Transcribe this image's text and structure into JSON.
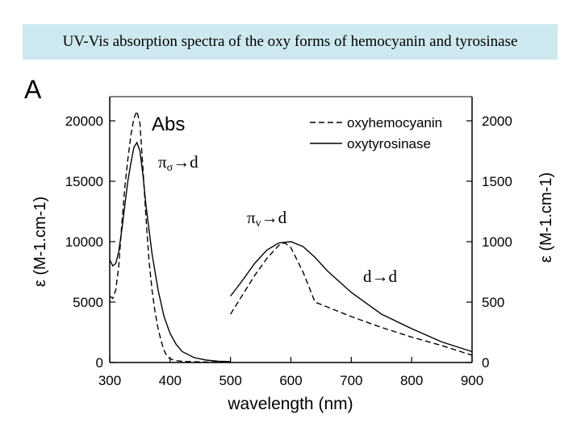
{
  "slide": {
    "title": "UV-Vis absorption spectra of the oxy forms of hemocyanin and tyrosinase"
  },
  "chart_data": {
    "type": "line",
    "panel_label": "A",
    "inner_title": "Abs",
    "xlabel": "wavelength (nm)",
    "ylabel_left": "ε (M-1.cm-1)",
    "ylabel_right": "ε (M-1.cm-1)",
    "xlim": [
      300,
      900
    ],
    "ylim_left": [
      0,
      22000
    ],
    "ylim_right": [
      0,
      2200
    ],
    "right_axis_scale_note": "UV region (300-500 nm) uses left axis; visible region (500-900 nm) uses right axis",
    "x_ticks": [
      300,
      400,
      500,
      600,
      700,
      800,
      900
    ],
    "y_ticks_left": [
      0,
      5000,
      10000,
      15000,
      20000
    ],
    "y_ticks_right": [
      0,
      500,
      1000,
      1500,
      2000
    ],
    "legend_position": "top-right",
    "series": [
      {
        "name": "oxyhemocyanin",
        "style": "dashed",
        "segment_uv": {
          "axis": "left",
          "x": [
            300,
            305,
            310,
            315,
            320,
            325,
            330,
            335,
            340,
            345,
            350,
            355,
            360,
            365,
            370,
            375,
            380,
            385,
            390,
            395,
            400,
            410,
            420,
            440,
            460,
            480,
            500
          ],
          "y": [
            5500,
            5300,
            6000,
            8000,
            11500,
            14500,
            16800,
            18800,
            20200,
            20800,
            19800,
            16000,
            12000,
            8500,
            6000,
            4200,
            2800,
            1800,
            1000,
            500,
            300,
            150,
            100,
            60,
            40,
            30,
            20
          ]
        },
        "segment_vis": {
          "axis": "right",
          "x": [
            500,
            520,
            540,
            560,
            580,
            590,
            600,
            620,
            640,
            660,
            700,
            750,
            800,
            850,
            900
          ],
          "y": [
            400,
            560,
            720,
            860,
            970,
            990,
            950,
            750,
            500,
            460,
            380,
            290,
            210,
            140,
            60
          ]
        }
      },
      {
        "name": "oxytyrosinase",
        "style": "solid",
        "segment_uv": {
          "axis": "left",
          "x": [
            300,
            305,
            310,
            315,
            320,
            325,
            330,
            335,
            340,
            345,
            350,
            355,
            360,
            370,
            380,
            390,
            400,
            410,
            420,
            440,
            460,
            480,
            500
          ],
          "y": [
            8500,
            8000,
            8200,
            9200,
            11000,
            13000,
            15000,
            16500,
            17800,
            18200,
            17500,
            15500,
            13000,
            9000,
            6000,
            3800,
            2400,
            1500,
            900,
            400,
            200,
            100,
            80
          ]
        },
        "segment_vis": {
          "axis": "right",
          "x": [
            500,
            520,
            540,
            560,
            580,
            600,
            620,
            640,
            660,
            700,
            750,
            800,
            850,
            900
          ],
          "y": [
            550,
            680,
            820,
            930,
            990,
            1000,
            960,
            870,
            760,
            580,
            400,
            280,
            170,
            90
          ]
        }
      }
    ],
    "annotations": [
      {
        "label": "πσ",
        "arrow": "→d",
        "near_x": 360,
        "near_y_left": 16000
      },
      {
        "label": "πv",
        "arrow": "→d",
        "near_x": 580,
        "near_y_right": 1150
      },
      {
        "label": "",
        "arrow": "d→d",
        "near_x": 700,
        "near_y_right": 700
      }
    ],
    "legend": [
      {
        "name": "oxyhemocyanin",
        "style": "dashed"
      },
      {
        "name": "oxytyrosinase",
        "style": "solid"
      }
    ]
  }
}
